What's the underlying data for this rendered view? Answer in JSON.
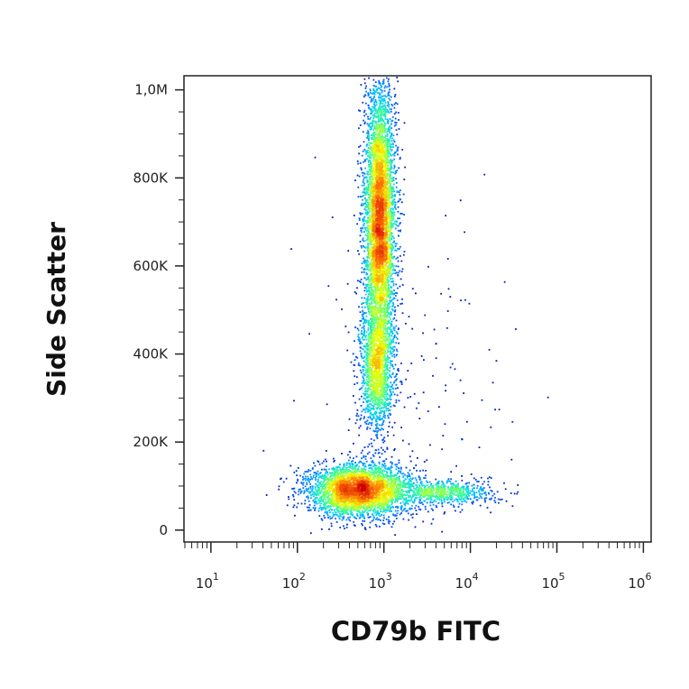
{
  "chart_data": {
    "type": "scatter",
    "title": "",
    "xlabel": "CD79b FITC",
    "ylabel": "Side Scatter",
    "x_scale": "log",
    "xlim": [
      5,
      1200000
    ],
    "ylim": [
      -25000,
      1030000
    ],
    "x_ticks": [
      {
        "base": "10",
        "exp": "1",
        "value": 10
      },
      {
        "base": "10",
        "exp": "2",
        "value": 100
      },
      {
        "base": "10",
        "exp": "3",
        "value": 1000
      },
      {
        "base": "10",
        "exp": "4",
        "value": 10000
      },
      {
        "base": "10",
        "exp": "5",
        "value": 100000
      },
      {
        "base": "10",
        "exp": "6",
        "value": 1000000
      }
    ],
    "y_ticks": [
      {
        "label": "0",
        "value": 0
      },
      {
        "label": "200K",
        "value": 200000
      },
      {
        "label": "400K",
        "value": 400000
      },
      {
        "label": "600K",
        "value": 600000
      },
      {
        "label": "800K",
        "value": 800000
      },
      {
        "label": "1,0M",
        "value": 1000000
      }
    ],
    "grid": false,
    "legend": "none",
    "density_colormap": [
      "#000090",
      "#0050ff",
      "#00c8ff",
      "#40ff90",
      "#f0ff00",
      "#ff7800",
      "#d00000"
    ],
    "populations": [
      {
        "x_center": 900,
        "y_center": 700000,
        "x_spread_log": 0.09,
        "y_sd": 160000,
        "count": 5200
      },
      {
        "x_center": 820,
        "y_center": 360000,
        "x_spread_log": 0.1,
        "y_sd": 70000,
        "count": 1400
      },
      {
        "x_center": 500,
        "y_center": 90000,
        "x_spread_log": 0.3,
        "y_sd": 30000,
        "count": 3400
      },
      {
        "x_center": 5000,
        "y_center": 85000,
        "x_spread_log": 0.3,
        "y_sd": 14000,
        "count": 700
      },
      {
        "x_center": 2000,
        "y_center": 300000,
        "x_spread_log": 0.6,
        "y_sd": 200000,
        "count": 150
      }
    ]
  }
}
